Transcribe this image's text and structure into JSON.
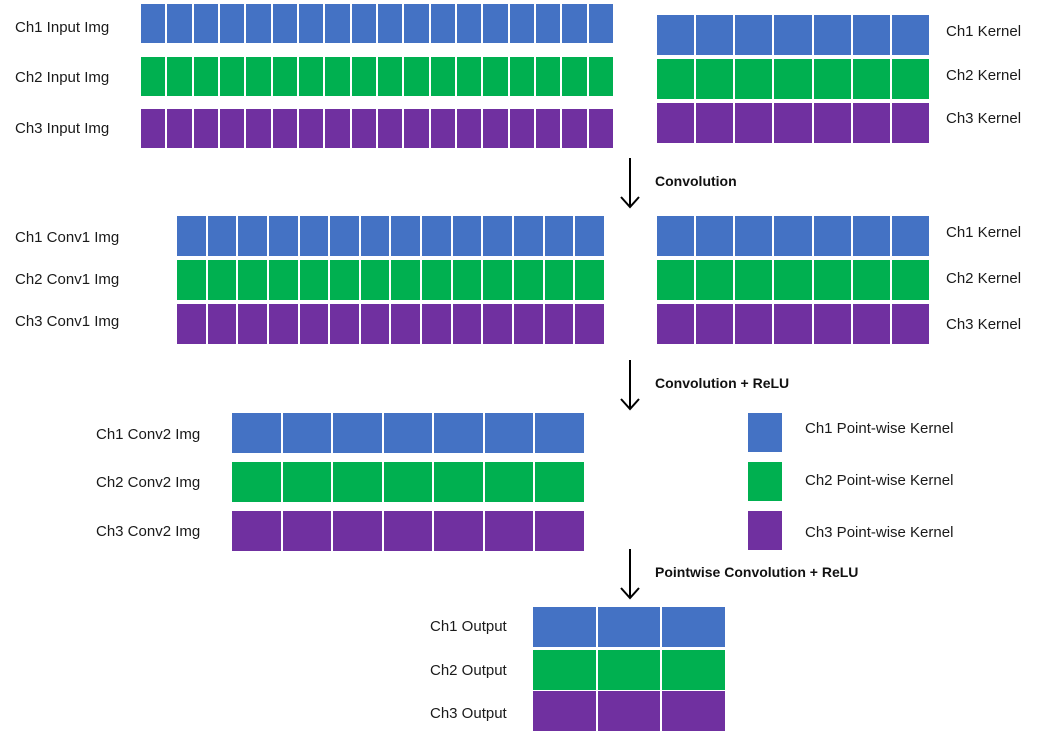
{
  "colors": {
    "ch1": "#4472c4",
    "ch2": "#00b050",
    "ch3": "#7030a0"
  },
  "stage1": {
    "inputs": {
      "labels": [
        "Ch1 Input Img",
        "Ch2 Input Img",
        "Ch3 Input Img"
      ],
      "cells": 18
    },
    "kernels": {
      "labels": [
        "Ch1 Kernel",
        "Ch2 Kernel",
        "Ch3 Kernel"
      ],
      "cells": 7
    }
  },
  "step1": {
    "label": "Convolution",
    "icon": "down-arrow-icon"
  },
  "stage2": {
    "images": {
      "labels": [
        "Ch1 Conv1 Img",
        "Ch2 Conv1 Img",
        "Ch3 Conv1 Img"
      ],
      "cells": 14
    },
    "kernels": {
      "labels": [
        "Ch1 Kernel",
        "Ch2 Kernel",
        "Ch3 Kernel"
      ],
      "cells": 7
    }
  },
  "step2": {
    "label": "Convolution + ReLU",
    "icon": "down-arrow-icon"
  },
  "stage3": {
    "images": {
      "labels": [
        "Ch1 Conv2 Img",
        "Ch2 Conv2 Img",
        "Ch3 Conv2 Img"
      ],
      "cells": 7
    },
    "pointwise_kernels": {
      "labels": [
        "Ch1 Point-wise Kernel",
        "Ch2 Point-wise Kernel",
        "Ch3 Point-wise Kernel"
      ],
      "cells": 1
    }
  },
  "step3": {
    "label": "Pointwise Convolution + ReLU",
    "icon": "down-arrow-icon"
  },
  "output": {
    "labels": [
      "Ch1 Output",
      "Ch2 Output",
      "Ch3 Output"
    ],
    "cells": 3
  }
}
